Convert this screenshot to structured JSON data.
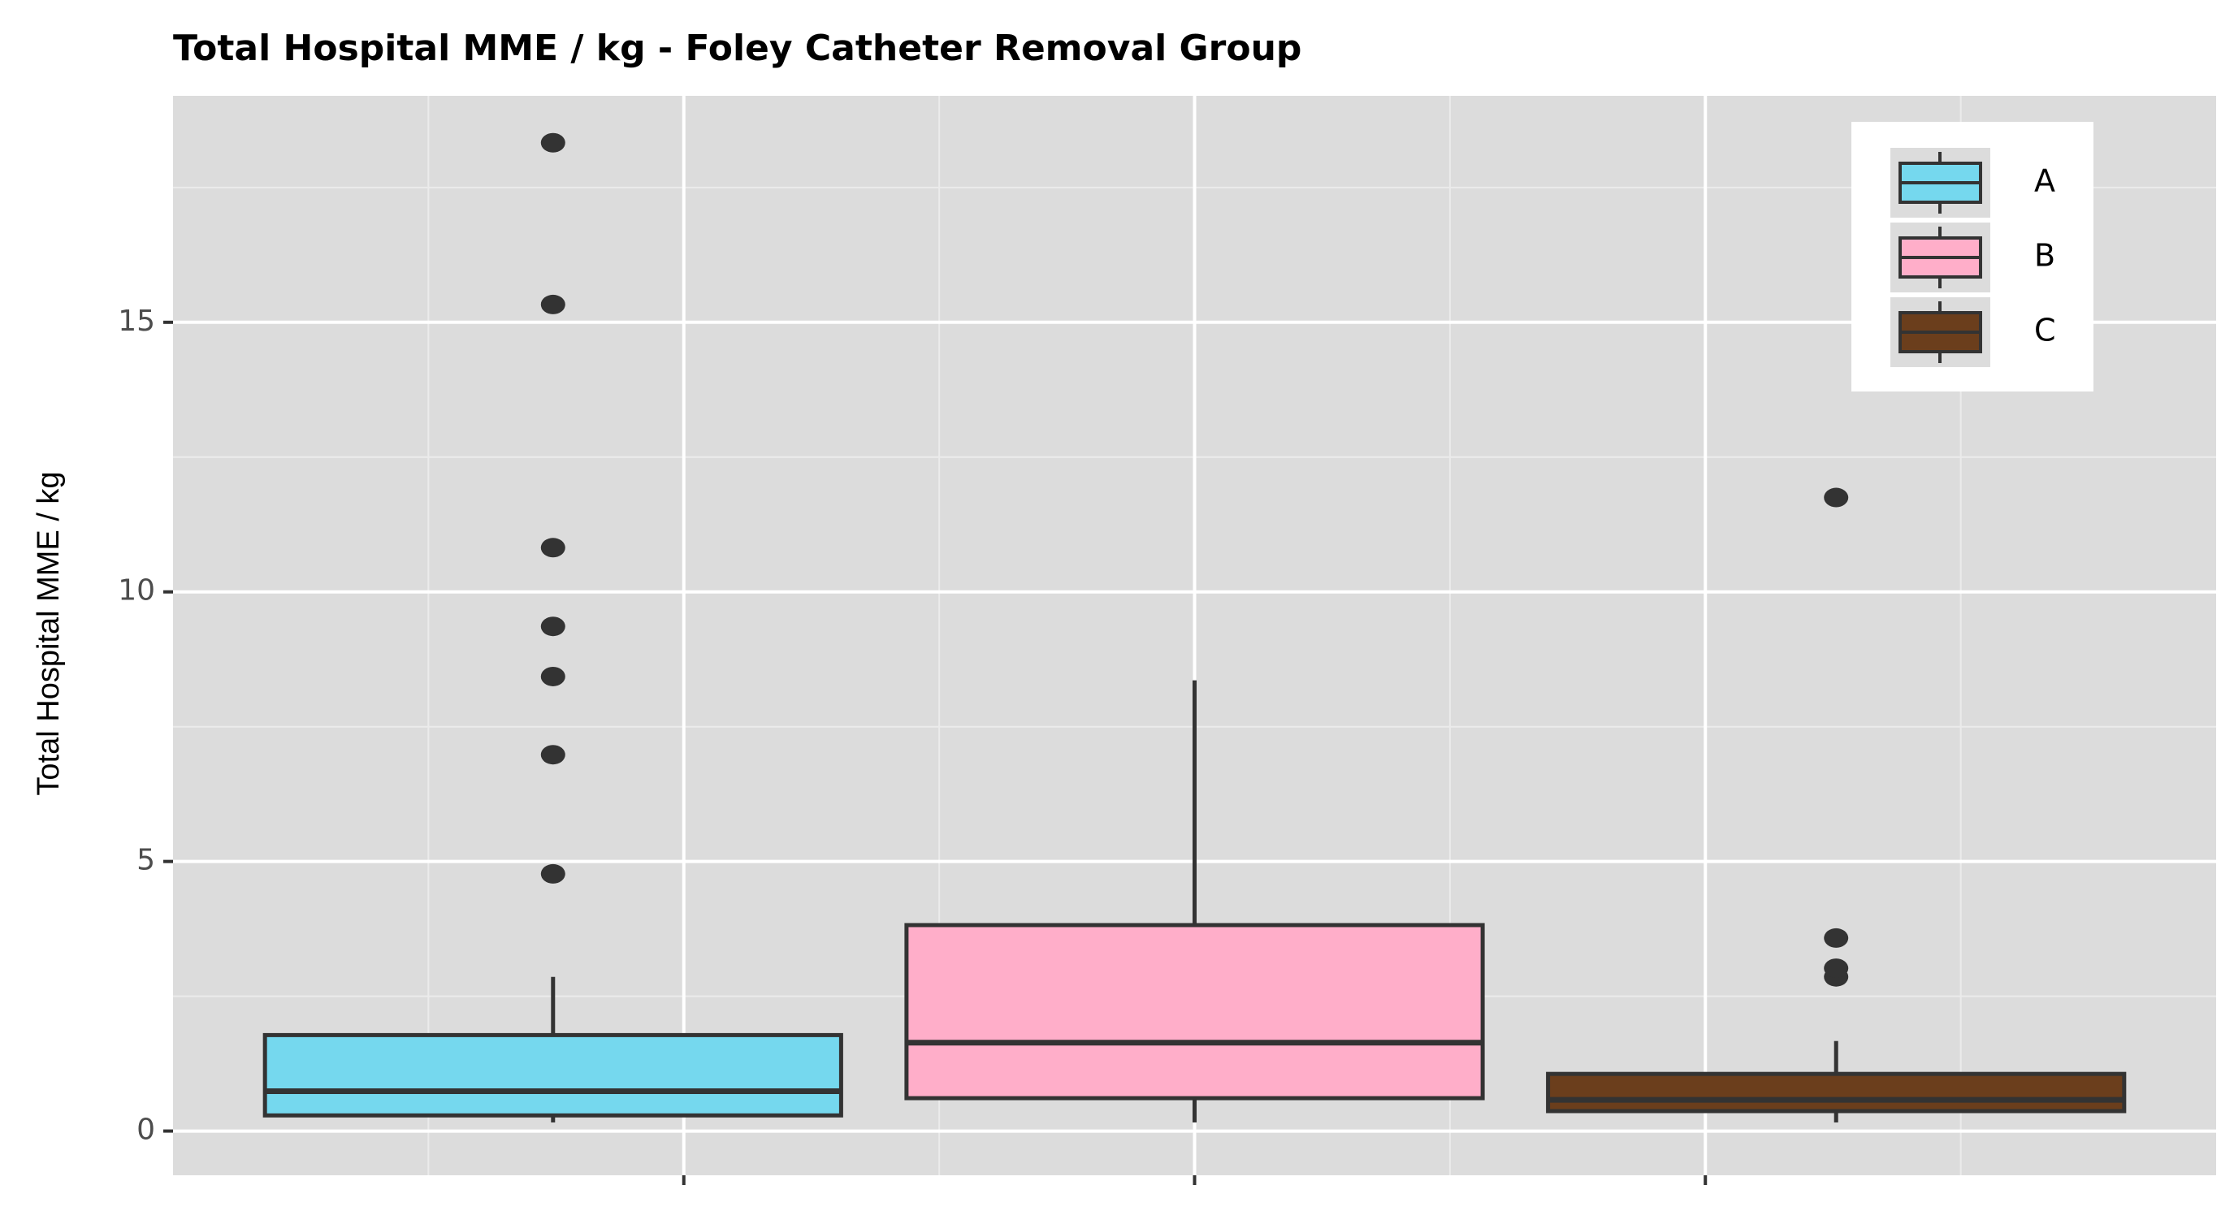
{
  "chart_data": {
    "type": "boxplot",
    "title": "Total Hospital MME / kg - Foley Catheter Removal Group",
    "y_label": "Total Hospital MME / kg",
    "categories": [
      null,
      null,
      null
    ],
    "series": [
      {
        "name": "A",
        "color": "#75d8ee",
        "min": 0.16,
        "q1": 0.29,
        "median": 0.74,
        "q3": 1.78,
        "max": 2.86,
        "outliers": [
          4.77,
          6.98,
          8.43,
          9.36,
          10.82,
          15.33,
          18.33
        ]
      },
      {
        "name": "B",
        "color": "#ffaec9",
        "min": 0.16,
        "q1": 0.61,
        "median": 1.64,
        "q3": 3.82,
        "max": 8.36,
        "outliers": []
      },
      {
        "name": "C",
        "color": "#6b3e1c",
        "min": 0.16,
        "q1": 0.37,
        "median": 0.58,
        "q3": 1.06,
        "max": 1.67,
        "outliers": [
          2.86,
          3.02,
          3.58,
          11.75
        ]
      }
    ],
    "ylim": [
      -0.82,
      19.2
    ],
    "yticks": [
      0,
      5,
      10,
      15
    ],
    "minor_yticks": [
      2.5,
      7.5,
      12.5,
      17.5
    ],
    "grid": true,
    "legend": "top-right"
  }
}
